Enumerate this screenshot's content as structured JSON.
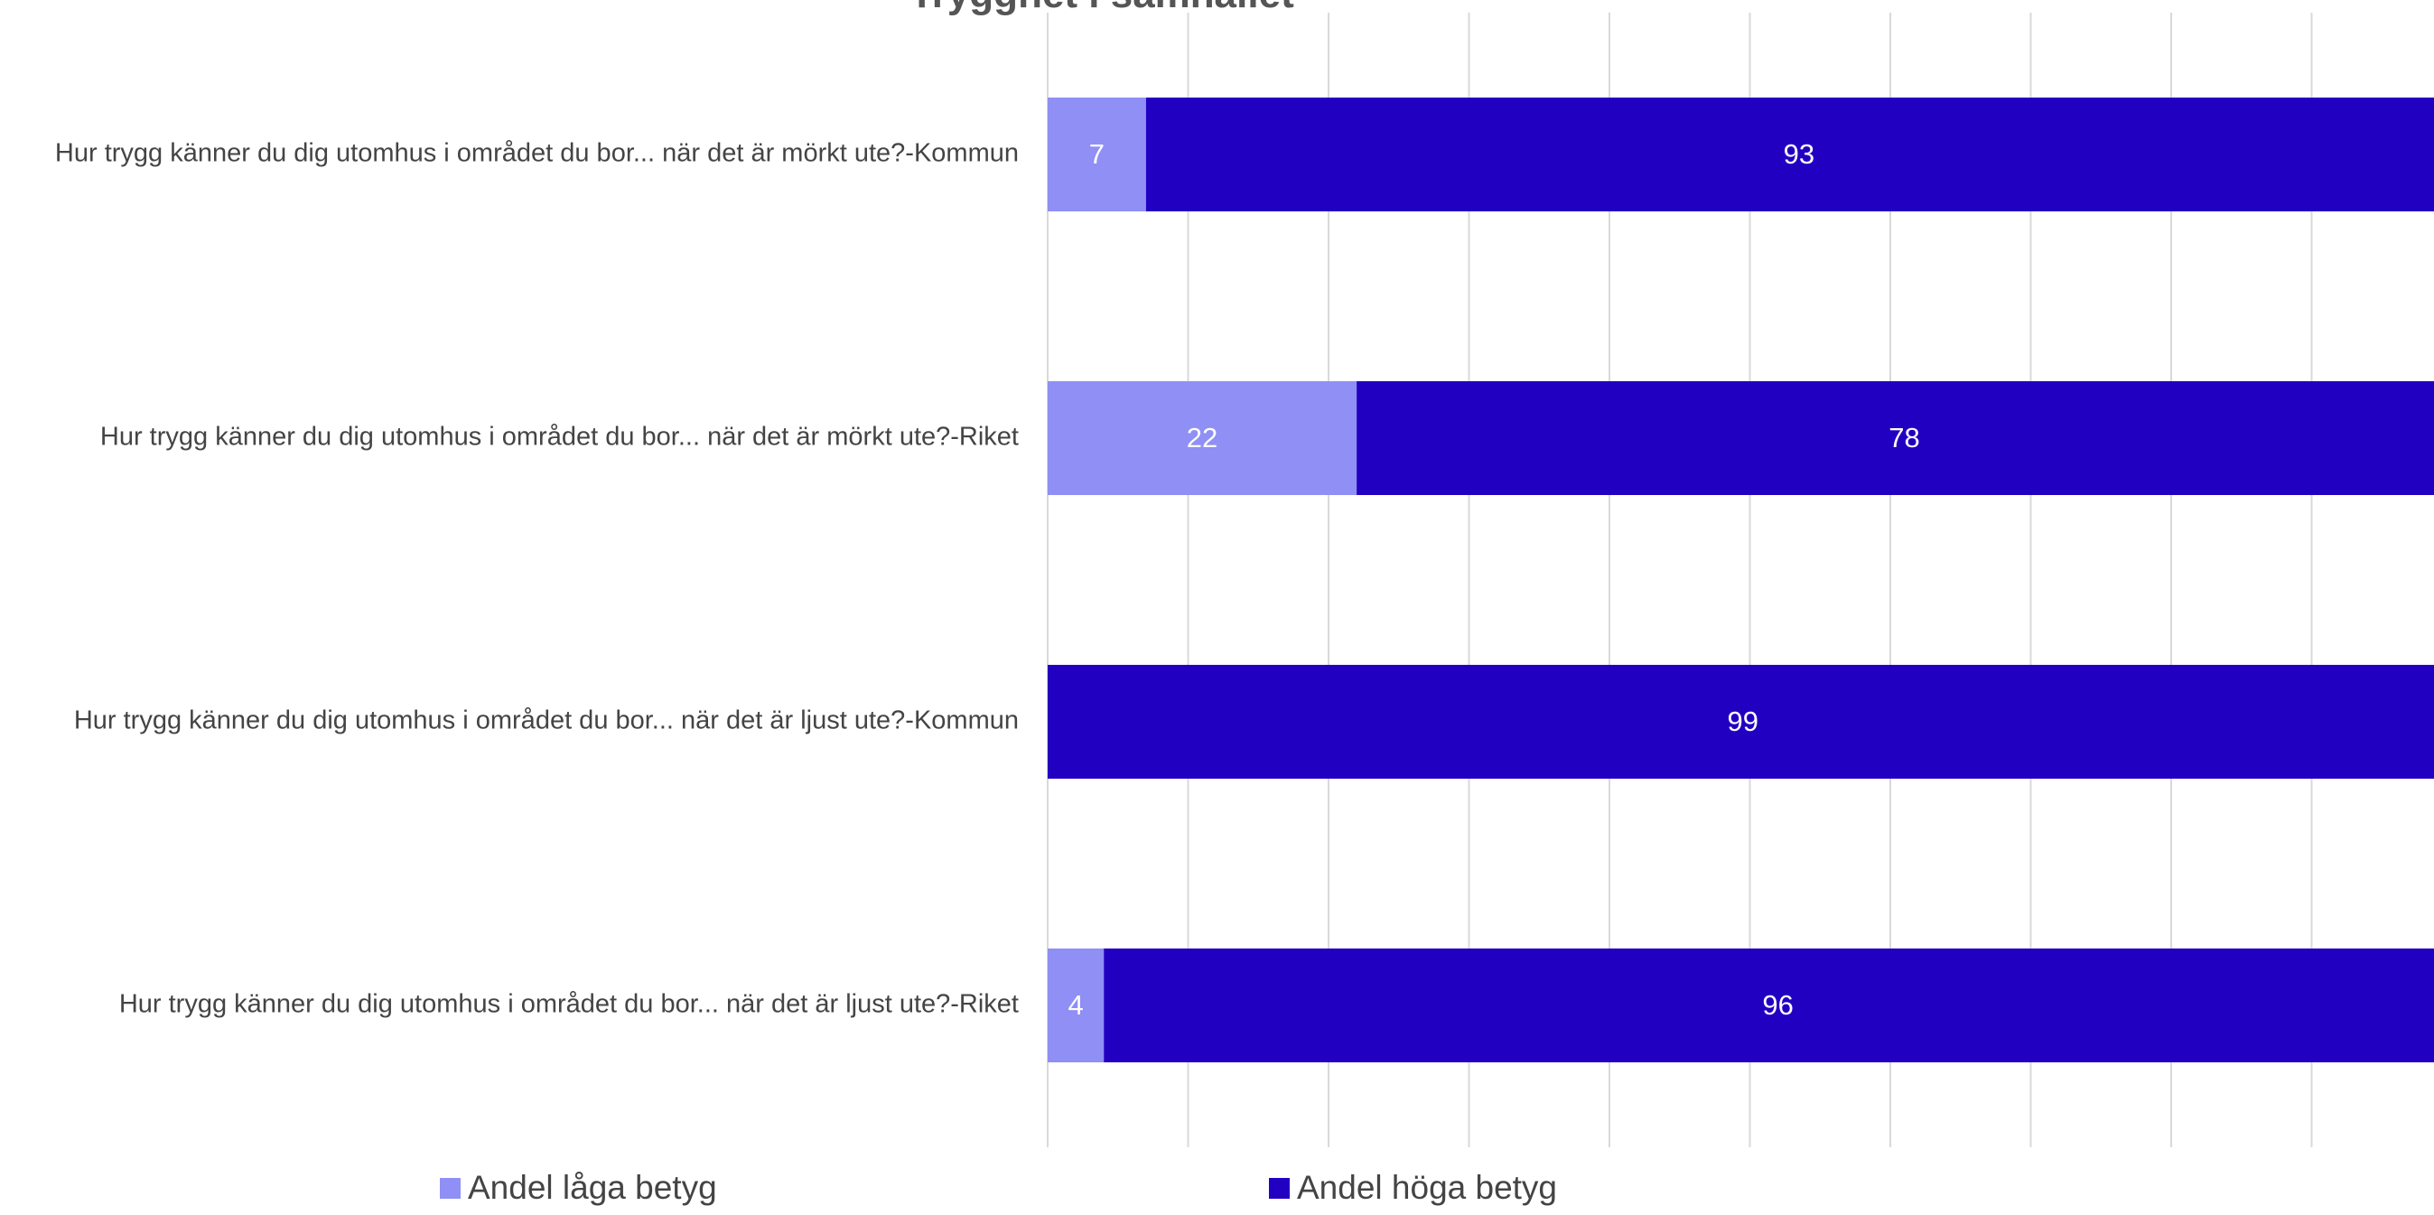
{
  "colors": {
    "low": "#8f8ff5",
    "high": "#2200c2",
    "grid": "#d9d9d9"
  },
  "legend": {
    "low_label": "Andel låga betyg",
    "high_label": "Andel höga betyg"
  },
  "chart_data": {
    "type": "bar",
    "orientation": "horizontal",
    "stacked": true,
    "title": "Trygghet i samhället",
    "categories": [
      "Hur trygg känner du dig utomhus i området du bor... när det är mörkt ute?-Kommun",
      "Hur trygg känner du dig utomhus i området du bor... när det är mörkt ute?-Riket",
      "Hur trygg känner du dig utomhus i området du bor... när det är ljust ute?-Kommun",
      "Hur trygg känner du dig utomhus i området du bor... när det är ljust ute?-Riket"
    ],
    "series": [
      {
        "name": "Andel låga betyg",
        "values": [
          7,
          22,
          0,
          4
        ]
      },
      {
        "name": "Andel höga betyg",
        "values": [
          93,
          78,
          99,
          96
        ]
      }
    ],
    "xlim": [
      0,
      100
    ],
    "grid": true,
    "legend_position": "bottom"
  }
}
